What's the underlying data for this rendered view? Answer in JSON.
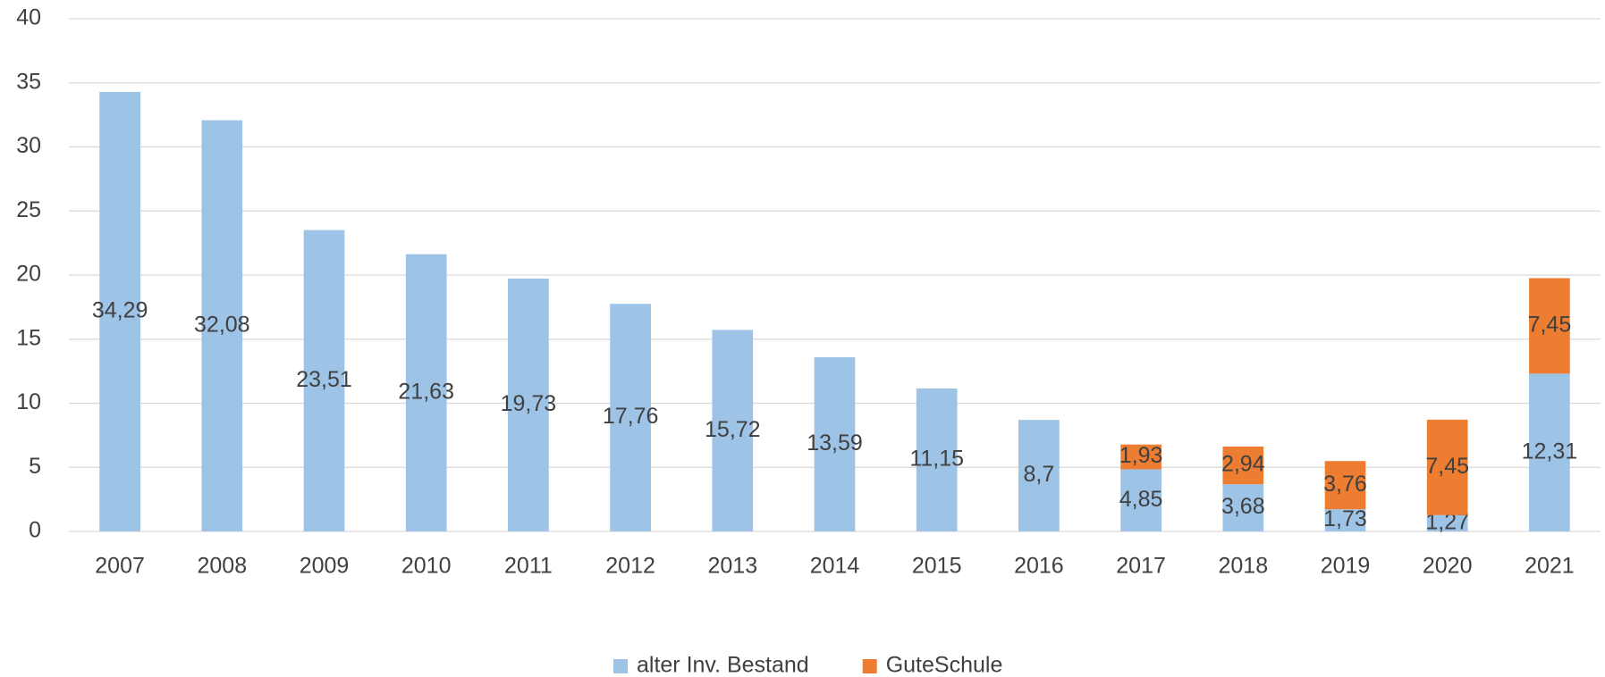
{
  "chart_data": {
    "type": "stacked_bar",
    "categories": [
      "2007",
      "2008",
      "2009",
      "2010",
      "2011",
      "2012",
      "2013",
      "2014",
      "2015",
      "2016",
      "2017",
      "2018",
      "2019",
      "2020",
      "2021"
    ],
    "series": [
      {
        "name": "alter Inv. Bestand",
        "color": "#9dc3e6",
        "values": [
          34.29,
          32.08,
          23.51,
          21.63,
          19.73,
          17.76,
          15.72,
          13.59,
          11.15,
          8.7,
          4.85,
          3.68,
          1.73,
          1.27,
          12.31
        ],
        "value_labels": [
          "34,29",
          "32,08",
          "23,51",
          "21,63",
          "19,73",
          "17,76",
          "15,72",
          "13,59",
          "11,15",
          "8,7",
          "4,85",
          "3,68",
          "1,73",
          "1,27",
          "12,31"
        ]
      },
      {
        "name": "GuteSchule",
        "color": "#ed7d31",
        "values": [
          null,
          null,
          null,
          null,
          null,
          null,
          null,
          null,
          null,
          null,
          1.93,
          2.94,
          3.76,
          7.45,
          7.45
        ],
        "value_labels": [
          null,
          null,
          null,
          null,
          null,
          null,
          null,
          null,
          null,
          null,
          "1,93",
          "2,94",
          "3,76",
          "7,45",
          "7,45"
        ]
      }
    ],
    "ylim": [
      0,
      40
    ],
    "yticks": [
      0,
      5,
      10,
      15,
      20,
      25,
      30,
      35,
      40
    ],
    "grid": true,
    "legend": "bottom"
  }
}
